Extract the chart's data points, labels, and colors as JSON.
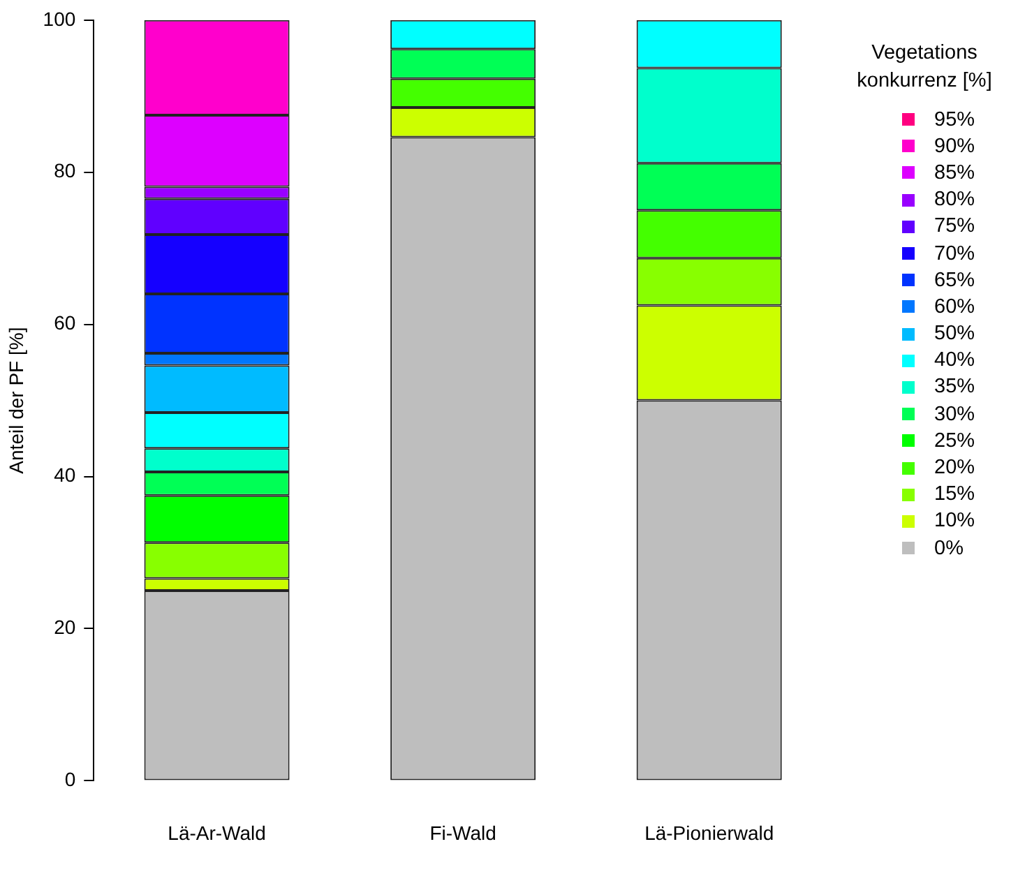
{
  "chart_data": {
    "type": "bar",
    "stacked": true,
    "ylabel": "Anteil der PF [%]",
    "legend_title": "Vegetations konkurrenz [%]",
    "legend": "right",
    "categories": [
      "Lä-Ar-Wald",
      "Fi-Wald",
      "Lä-Pionierwald"
    ],
    "ylim": [
      0,
      100
    ],
    "yticks": [
      0,
      20,
      40,
      60,
      80,
      100
    ],
    "grid": false,
    "series": [
      {
        "name": "0%",
        "color": "#bebebe",
        "values": [
          25,
          84.6,
          50
        ]
      },
      {
        "name": "10%",
        "color": "#ccff00",
        "values": [
          1.6,
          3.9,
          12.5
        ]
      },
      {
        "name": "15%",
        "color": "#88ff00",
        "values": [
          4.7,
          0,
          6.2
        ]
      },
      {
        "name": "20%",
        "color": "#44ff00",
        "values": [
          0,
          3.8,
          6.3
        ]
      },
      {
        "name": "25%",
        "color": "#00ff00",
        "values": [
          6.2,
          0,
          0
        ]
      },
      {
        "name": "30%",
        "color": "#00ff55",
        "values": [
          3.1,
          3.9,
          6.2
        ]
      },
      {
        "name": "35%",
        "color": "#00ffcc",
        "values": [
          3.1,
          0,
          12.5
        ]
      },
      {
        "name": "40%",
        "color": "#00ffff",
        "values": [
          4.7,
          3.8,
          6.3
        ]
      },
      {
        "name": "50%",
        "color": "#00bbff",
        "values": [
          6.2,
          0,
          0
        ]
      },
      {
        "name": "60%",
        "color": "#0077ff",
        "values": [
          1.6,
          0,
          0
        ]
      },
      {
        "name": "65%",
        "color": "#0033ff",
        "values": [
          7.8,
          0,
          0
        ]
      },
      {
        "name": "70%",
        "color": "#1500ff",
        "values": [
          7.8,
          0,
          0
        ]
      },
      {
        "name": "75%",
        "color": "#6000ff",
        "values": [
          4.7,
          0,
          0
        ]
      },
      {
        "name": "80%",
        "color": "#9900ff",
        "values": [
          1.6,
          0,
          0
        ]
      },
      {
        "name": "85%",
        "color": "#dd00ff",
        "values": [
          9.4,
          0,
          0
        ]
      },
      {
        "name": "90%",
        "color": "#ff00cc",
        "values": [
          12.5,
          0,
          0
        ]
      },
      {
        "name": "95%",
        "color": "#ff0080",
        "values": [
          0,
          0,
          0
        ]
      }
    ]
  }
}
